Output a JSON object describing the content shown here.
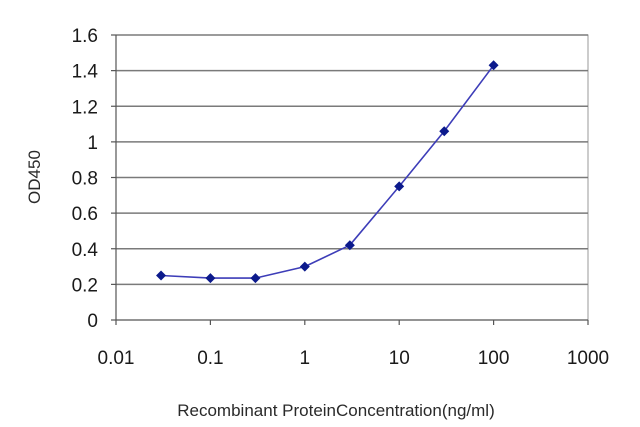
{
  "chart_data": {
    "type": "line",
    "title": "",
    "xlabel": "Recombinant ProteinConcentration(ng/ml)",
    "ylabel": "OD450",
    "x_scale": "log",
    "xlim": [
      0.01,
      1000
    ],
    "ylim": [
      0,
      1.6
    ],
    "x_ticks": [
      0.01,
      0.1,
      1,
      10,
      100,
      1000
    ],
    "x_tick_labels": [
      "0.01",
      "0.1",
      "1",
      "10",
      "100",
      "1000"
    ],
    "y_ticks": [
      0,
      0.2,
      0.4,
      0.6,
      0.8,
      1,
      1.2,
      1.4,
      1.6
    ],
    "y_tick_labels": [
      "0",
      "0.2",
      "0.4",
      "0.6",
      "0.8",
      "1",
      "1.2",
      "1.4",
      "1.6"
    ],
    "grid": "horizontal",
    "legend": "none",
    "series": [
      {
        "x": [
          0.03,
          0.1,
          0.3,
          1,
          3,
          10,
          30,
          100
        ],
        "y": [
          0.25,
          0.235,
          0.235,
          0.3,
          0.42,
          0.75,
          1.06,
          1.43
        ]
      }
    ],
    "colors": {
      "line": "#3d3db8",
      "marker": "#0c1a8c",
      "grid": "#7a7a7a",
      "plot_border": "#9a9a9a",
      "plot_background": "#ffffff"
    }
  }
}
